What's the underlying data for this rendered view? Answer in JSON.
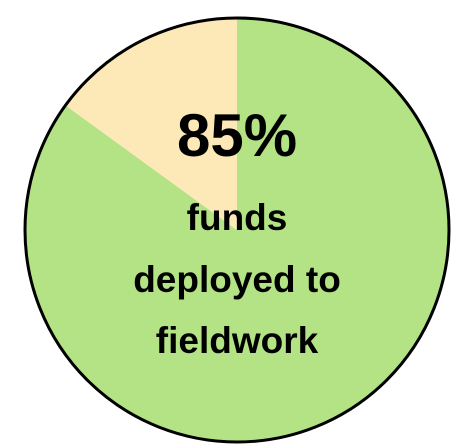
{
  "chart_data": {
    "type": "pie",
    "values": [
      85,
      15
    ],
    "value_labels": [
      "85%",
      null
    ],
    "colors": [
      "#b3e384",
      "#fde9b8"
    ],
    "caption": [
      "funds",
      "deployed to",
      "fieldwork"
    ]
  }
}
